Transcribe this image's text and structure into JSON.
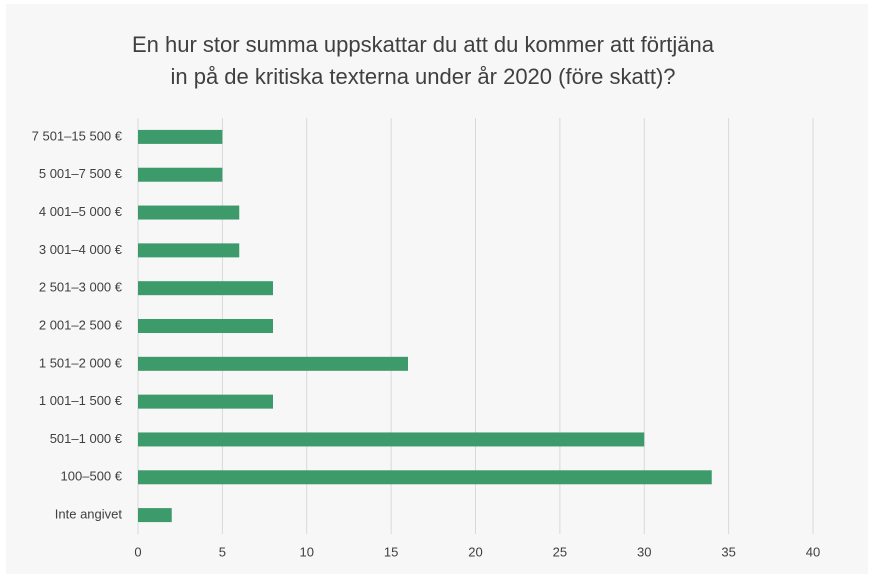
{
  "chart_data": {
    "type": "barh",
    "title": [
      "En hur stor summa uppskattar du att du kommer att förtjäna",
      "in på de kritiska texterna under år 2020 (före skatt)?"
    ],
    "categories": [
      "7 501–15 500 €",
      "5 001–7 500 €",
      "4 001–5 000 €",
      "3 001–4 000 €",
      "2 501–3 000 €",
      "2 001–2 500 €",
      "1 501–2 000 €",
      "1 001–1 500 €",
      "501–1 000 €",
      "100–500 €",
      "Inte angivet"
    ],
    "values": [
      5,
      5,
      6,
      6,
      8,
      8,
      16,
      8,
      30,
      34,
      2
    ],
    "color": "#3d9b6b",
    "xlim": [
      0,
      40
    ],
    "xticks": [
      0,
      5,
      10,
      15,
      20,
      25,
      30,
      35,
      40
    ],
    "grid": true
  }
}
